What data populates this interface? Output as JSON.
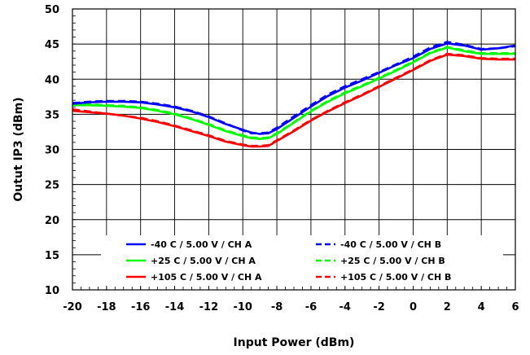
{
  "chart_data": {
    "type": "line",
    "xlabel": "Input Power (dBm)",
    "ylabel": "Outut IP3 (dBm)",
    "xlim": [
      -20,
      6
    ],
    "ylim": [
      10,
      50
    ],
    "xticks": [
      -20,
      -18,
      -16,
      -14,
      -12,
      -10,
      -8,
      -6,
      -4,
      -2,
      0,
      2,
      4,
      6
    ],
    "yticks": [
      10,
      15,
      20,
      25,
      30,
      35,
      40,
      45,
      50
    ],
    "x_minor_step": 0.5,
    "y_minor_step": 1,
    "grid": true,
    "legend_position": "bottom",
    "series": [
      {
        "name": "-40 C  / 5.00 V / CH A",
        "color": "#0000ff",
        "dash": "solid",
        "x": [
          -20,
          -19,
          -18,
          -17,
          -16,
          -15,
          -14,
          -13,
          -12,
          -11,
          -10,
          -9.5,
          -9,
          -8.5,
          -8,
          -7,
          -6,
          -5,
          -4,
          -3,
          -2,
          -1,
          0,
          1,
          2,
          3,
          4,
          5,
          6
        ],
        "y": [
          36.5,
          36.7,
          36.8,
          36.8,
          36.7,
          36.4,
          36.0,
          35.4,
          34.6,
          33.6,
          32.8,
          32.4,
          32.2,
          32.3,
          32.9,
          34.5,
          36.1,
          37.6,
          38.8,
          39.8,
          40.9,
          42.0,
          43.0,
          44.3,
          45.1,
          44.8,
          44.2,
          44.4,
          44.8
        ]
      },
      {
        "name": "-40 C  / 5.00 V / CH B",
        "color": "#0000ff",
        "dash": "dashed",
        "x": [
          -20,
          -19,
          -18,
          -17,
          -16,
          -15,
          -14,
          -13,
          -12,
          -11,
          -10,
          -9.5,
          -9,
          -8.5,
          -8,
          -7,
          -6,
          -5,
          -4,
          -3,
          -2,
          -1,
          0,
          1,
          2,
          3,
          4,
          5,
          6
        ],
        "y": [
          36.6,
          36.8,
          36.9,
          36.9,
          36.8,
          36.5,
          36.1,
          35.5,
          34.7,
          33.7,
          32.7,
          32.3,
          32.3,
          32.4,
          33.1,
          34.7,
          36.3,
          37.8,
          39.0,
          40.0,
          41.0,
          42.1,
          43.2,
          44.5,
          45.3,
          44.9,
          44.3,
          44.4,
          44.7
        ]
      },
      {
        "name": "+25 C  / 5.00 V / CH A",
        "color": "#00ff00",
        "dash": "solid",
        "x": [
          -20,
          -19,
          -18,
          -17,
          -16,
          -15,
          -14,
          -13,
          -12,
          -11,
          -10,
          -9.5,
          -9,
          -8.5,
          -8,
          -7,
          -6,
          -5,
          -4,
          -3,
          -2,
          -1,
          0,
          1,
          2,
          3,
          4,
          5,
          6
        ],
        "y": [
          36.3,
          36.3,
          36.2,
          36.1,
          35.9,
          35.5,
          35.0,
          34.3,
          33.5,
          32.6,
          31.9,
          31.6,
          31.5,
          31.6,
          32.2,
          33.8,
          35.4,
          36.8,
          38.0,
          39.0,
          40.1,
          41.2,
          42.4,
          43.7,
          44.5,
          44.0,
          43.6,
          43.6,
          43.6
        ]
      },
      {
        "name": "+25 C  / 5.00 V / CH B",
        "color": "#00ff00",
        "dash": "dashed",
        "x": [
          -20,
          -19,
          -18,
          -17,
          -16,
          -15,
          -14,
          -13,
          -12,
          -11,
          -10,
          -9.5,
          -9,
          -8.5,
          -8,
          -7,
          -6,
          -5,
          -4,
          -3,
          -2,
          -1,
          0,
          1,
          2,
          3,
          4,
          5,
          6
        ],
        "y": [
          36.4,
          36.4,
          36.3,
          36.2,
          36.0,
          35.6,
          35.1,
          34.4,
          33.6,
          32.7,
          32.0,
          31.7,
          31.6,
          31.7,
          32.3,
          33.9,
          35.5,
          36.9,
          38.1,
          39.1,
          40.2,
          41.3,
          42.5,
          43.8,
          44.6,
          44.1,
          43.7,
          43.7,
          43.7
        ]
      },
      {
        "name": "+105 C  / 5.00 V / CH A",
        "color": "#ff0000",
        "dash": "solid",
        "x": [
          -20,
          -19,
          -18,
          -17,
          -16,
          -15,
          -14,
          -13,
          -12,
          -11,
          -10,
          -9.5,
          -9,
          -8.5,
          -8,
          -7,
          -6,
          -5,
          -4,
          -3,
          -2,
          -1,
          0,
          1,
          2,
          3,
          4,
          5,
          6
        ],
        "y": [
          35.5,
          35.3,
          35.1,
          34.8,
          34.4,
          33.9,
          33.3,
          32.6,
          31.9,
          31.1,
          30.6,
          30.4,
          30.4,
          30.5,
          31.2,
          32.6,
          34.1,
          35.4,
          36.6,
          37.7,
          38.9,
          40.1,
          41.3,
          42.6,
          43.5,
          43.3,
          42.9,
          42.8,
          42.8
        ]
      },
      {
        "name": "+105 C  / 5.00 V / CH B",
        "color": "#ff0000",
        "dash": "dashed",
        "x": [
          -20,
          -19,
          -18,
          -17,
          -16,
          -15,
          -14,
          -13,
          -12,
          -11,
          -10,
          -9.5,
          -9,
          -8.5,
          -8,
          -7,
          -6,
          -5,
          -4,
          -3,
          -2,
          -1,
          0,
          1,
          2,
          3,
          4,
          5,
          6
        ],
        "y": [
          35.7,
          35.4,
          35.1,
          34.8,
          34.5,
          34.0,
          33.4,
          32.7,
          32.0,
          31.2,
          30.7,
          30.5,
          30.5,
          30.6,
          31.3,
          32.7,
          34.2,
          35.5,
          36.7,
          37.8,
          39.0,
          40.2,
          41.4,
          42.7,
          43.6,
          43.4,
          43.0,
          42.9,
          42.9
        ]
      }
    ]
  }
}
